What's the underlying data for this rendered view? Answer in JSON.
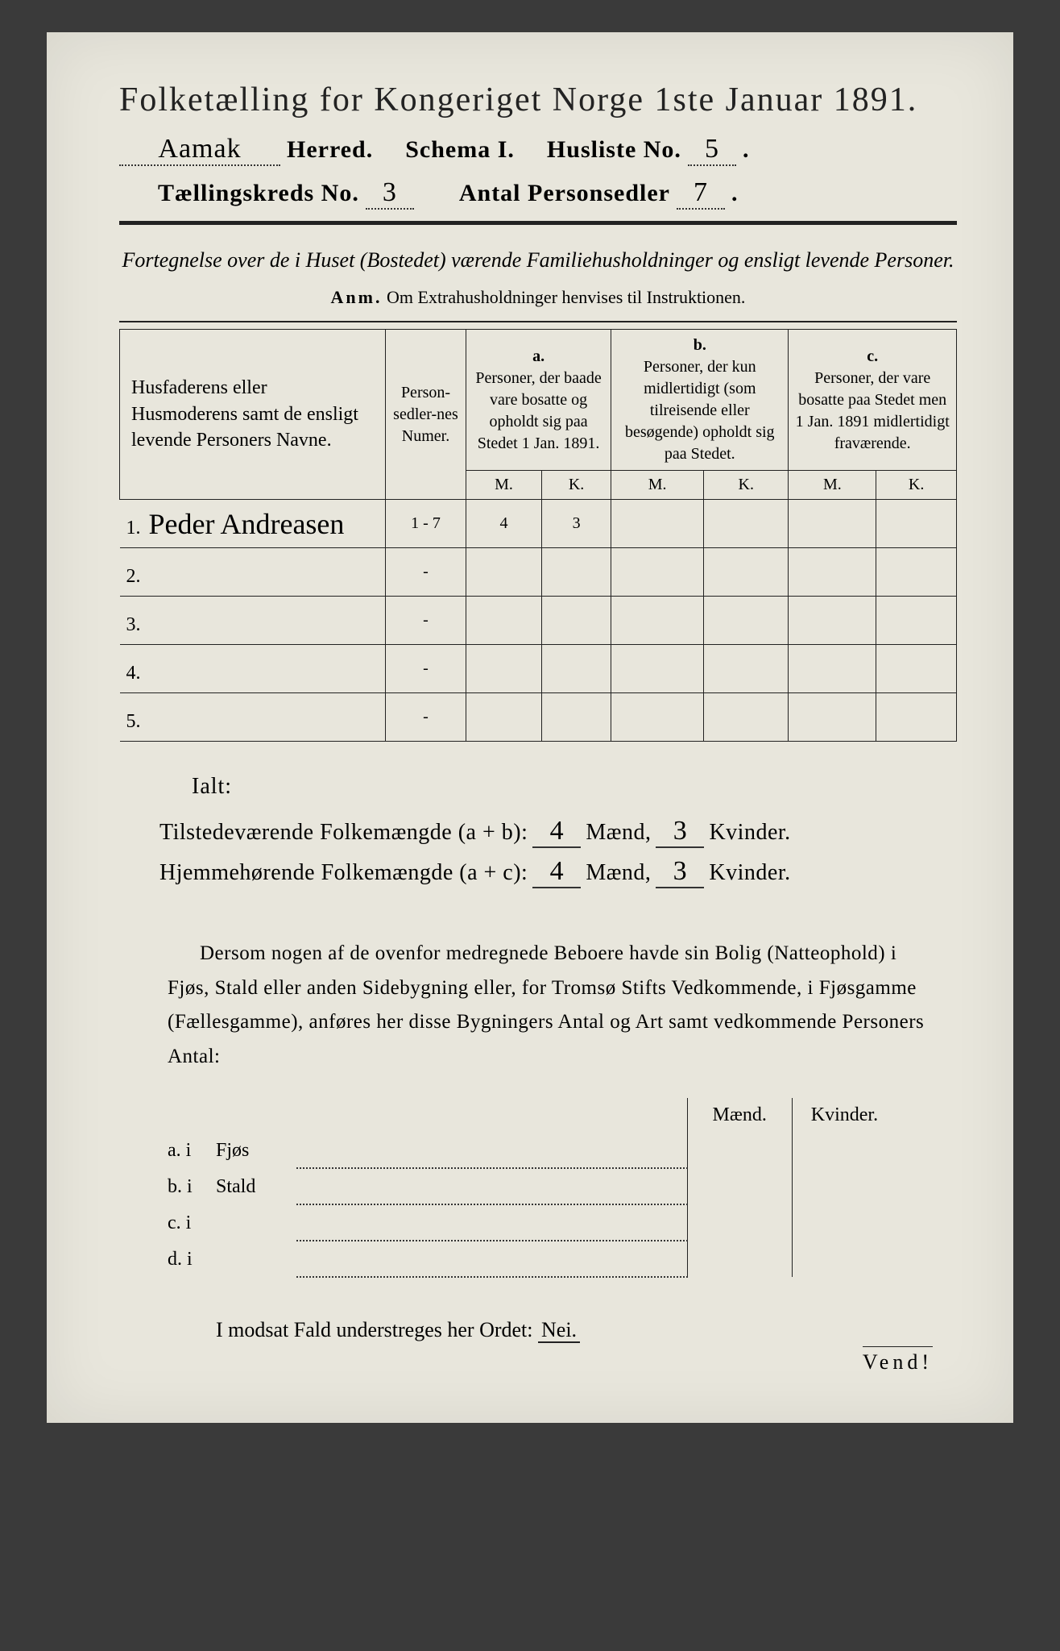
{
  "page": {
    "background_color": "#e8e6dc",
    "ink_color": "#222222"
  },
  "header": {
    "title": "Folketælling for Kongeriget Norge 1ste Januar 1891.",
    "herred_handwritten": "Aamak",
    "herred_label": "Herred.",
    "schema_label": "Schema I.",
    "husliste_label": "Husliste No.",
    "husliste_no": "5",
    "kreds_label": "Tællingskreds No.",
    "kreds_no": "3",
    "personsedler_label": "Antal Personsedler",
    "personsedler_no": "7"
  },
  "subtitle": "Fortegnelse over de i Huset (Bostedet) værende Familiehusholdninger og ensligt levende Personer.",
  "anm_label": "Anm.",
  "anm_text": "Om Extrahusholdninger henvises til Instruktionen.",
  "table": {
    "col_names": "Husfaderens eller Husmoderens samt de ensligt levende Personers Navne.",
    "col_nummer": "Person-sedler-nes Numer.",
    "col_a_label": "a.",
    "col_a": "Personer, der baade vare bosatte og opholdt sig paa Stedet 1 Jan. 1891.",
    "col_b_label": "b.",
    "col_b": "Personer, der kun midlertidigt (som tilreisende eller besøgende) opholdt sig paa Stedet.",
    "col_c_label": "c.",
    "col_c": "Personer, der vare bosatte paa Stedet men 1 Jan. 1891 midlertidigt fraværende.",
    "M": "M.",
    "K": "K.",
    "rows": [
      {
        "n": "1.",
        "name": "Peder Andreasen",
        "numer": "1 - 7",
        "aM": "4",
        "aK": "3",
        "bM": "",
        "bK": "",
        "cM": "",
        "cK": ""
      },
      {
        "n": "2.",
        "name": "",
        "numer": "-",
        "aM": "",
        "aK": "",
        "bM": "",
        "bK": "",
        "cM": "",
        "cK": ""
      },
      {
        "n": "3.",
        "name": "",
        "numer": "-",
        "aM": "",
        "aK": "",
        "bM": "",
        "bK": "",
        "cM": "",
        "cK": ""
      },
      {
        "n": "4.",
        "name": "",
        "numer": "-",
        "aM": "",
        "aK": "",
        "bM": "",
        "bK": "",
        "cM": "",
        "cK": ""
      },
      {
        "n": "5.",
        "name": "",
        "numer": "-",
        "aM": "",
        "aK": "",
        "bM": "",
        "bK": "",
        "cM": "",
        "cK": ""
      }
    ]
  },
  "totals": {
    "ialt": "Ialt:",
    "tilstede_label": "Tilstedeværende Folkemængde (a + b):",
    "hjemme_label": "Hjemmehørende Folkemængde (a + c):",
    "maend": "Mænd,",
    "kvinder": "Kvinder.",
    "tilstede_M": "4",
    "tilstede_K": "3",
    "hjemme_M": "4",
    "hjemme_K": "3"
  },
  "paragraph": "Dersom nogen af de ovenfor medregnede Beboere havde sin Bolig (Natteophold) i Fjøs, Stald eller anden Sidebygning eller, for Tromsø Stifts Vedkommende, i Fjøsgamme (Fællesgamme), anføres her disse Bygningers Antal og Art samt vedkommende Personers Antal:",
  "bygninger": {
    "maend": "Mænd.",
    "kvinder": "Kvinder.",
    "rows": [
      {
        "lab": "a.  i",
        "type": "Fjøs"
      },
      {
        "lab": "b.  i",
        "type": "Stald"
      },
      {
        "lab": "c.  i",
        "type": ""
      },
      {
        "lab": "d.  i",
        "type": ""
      }
    ]
  },
  "nei_line": "I modsat Fald understreges her Ordet:",
  "nei": "Nei.",
  "vend": "Vend!"
}
